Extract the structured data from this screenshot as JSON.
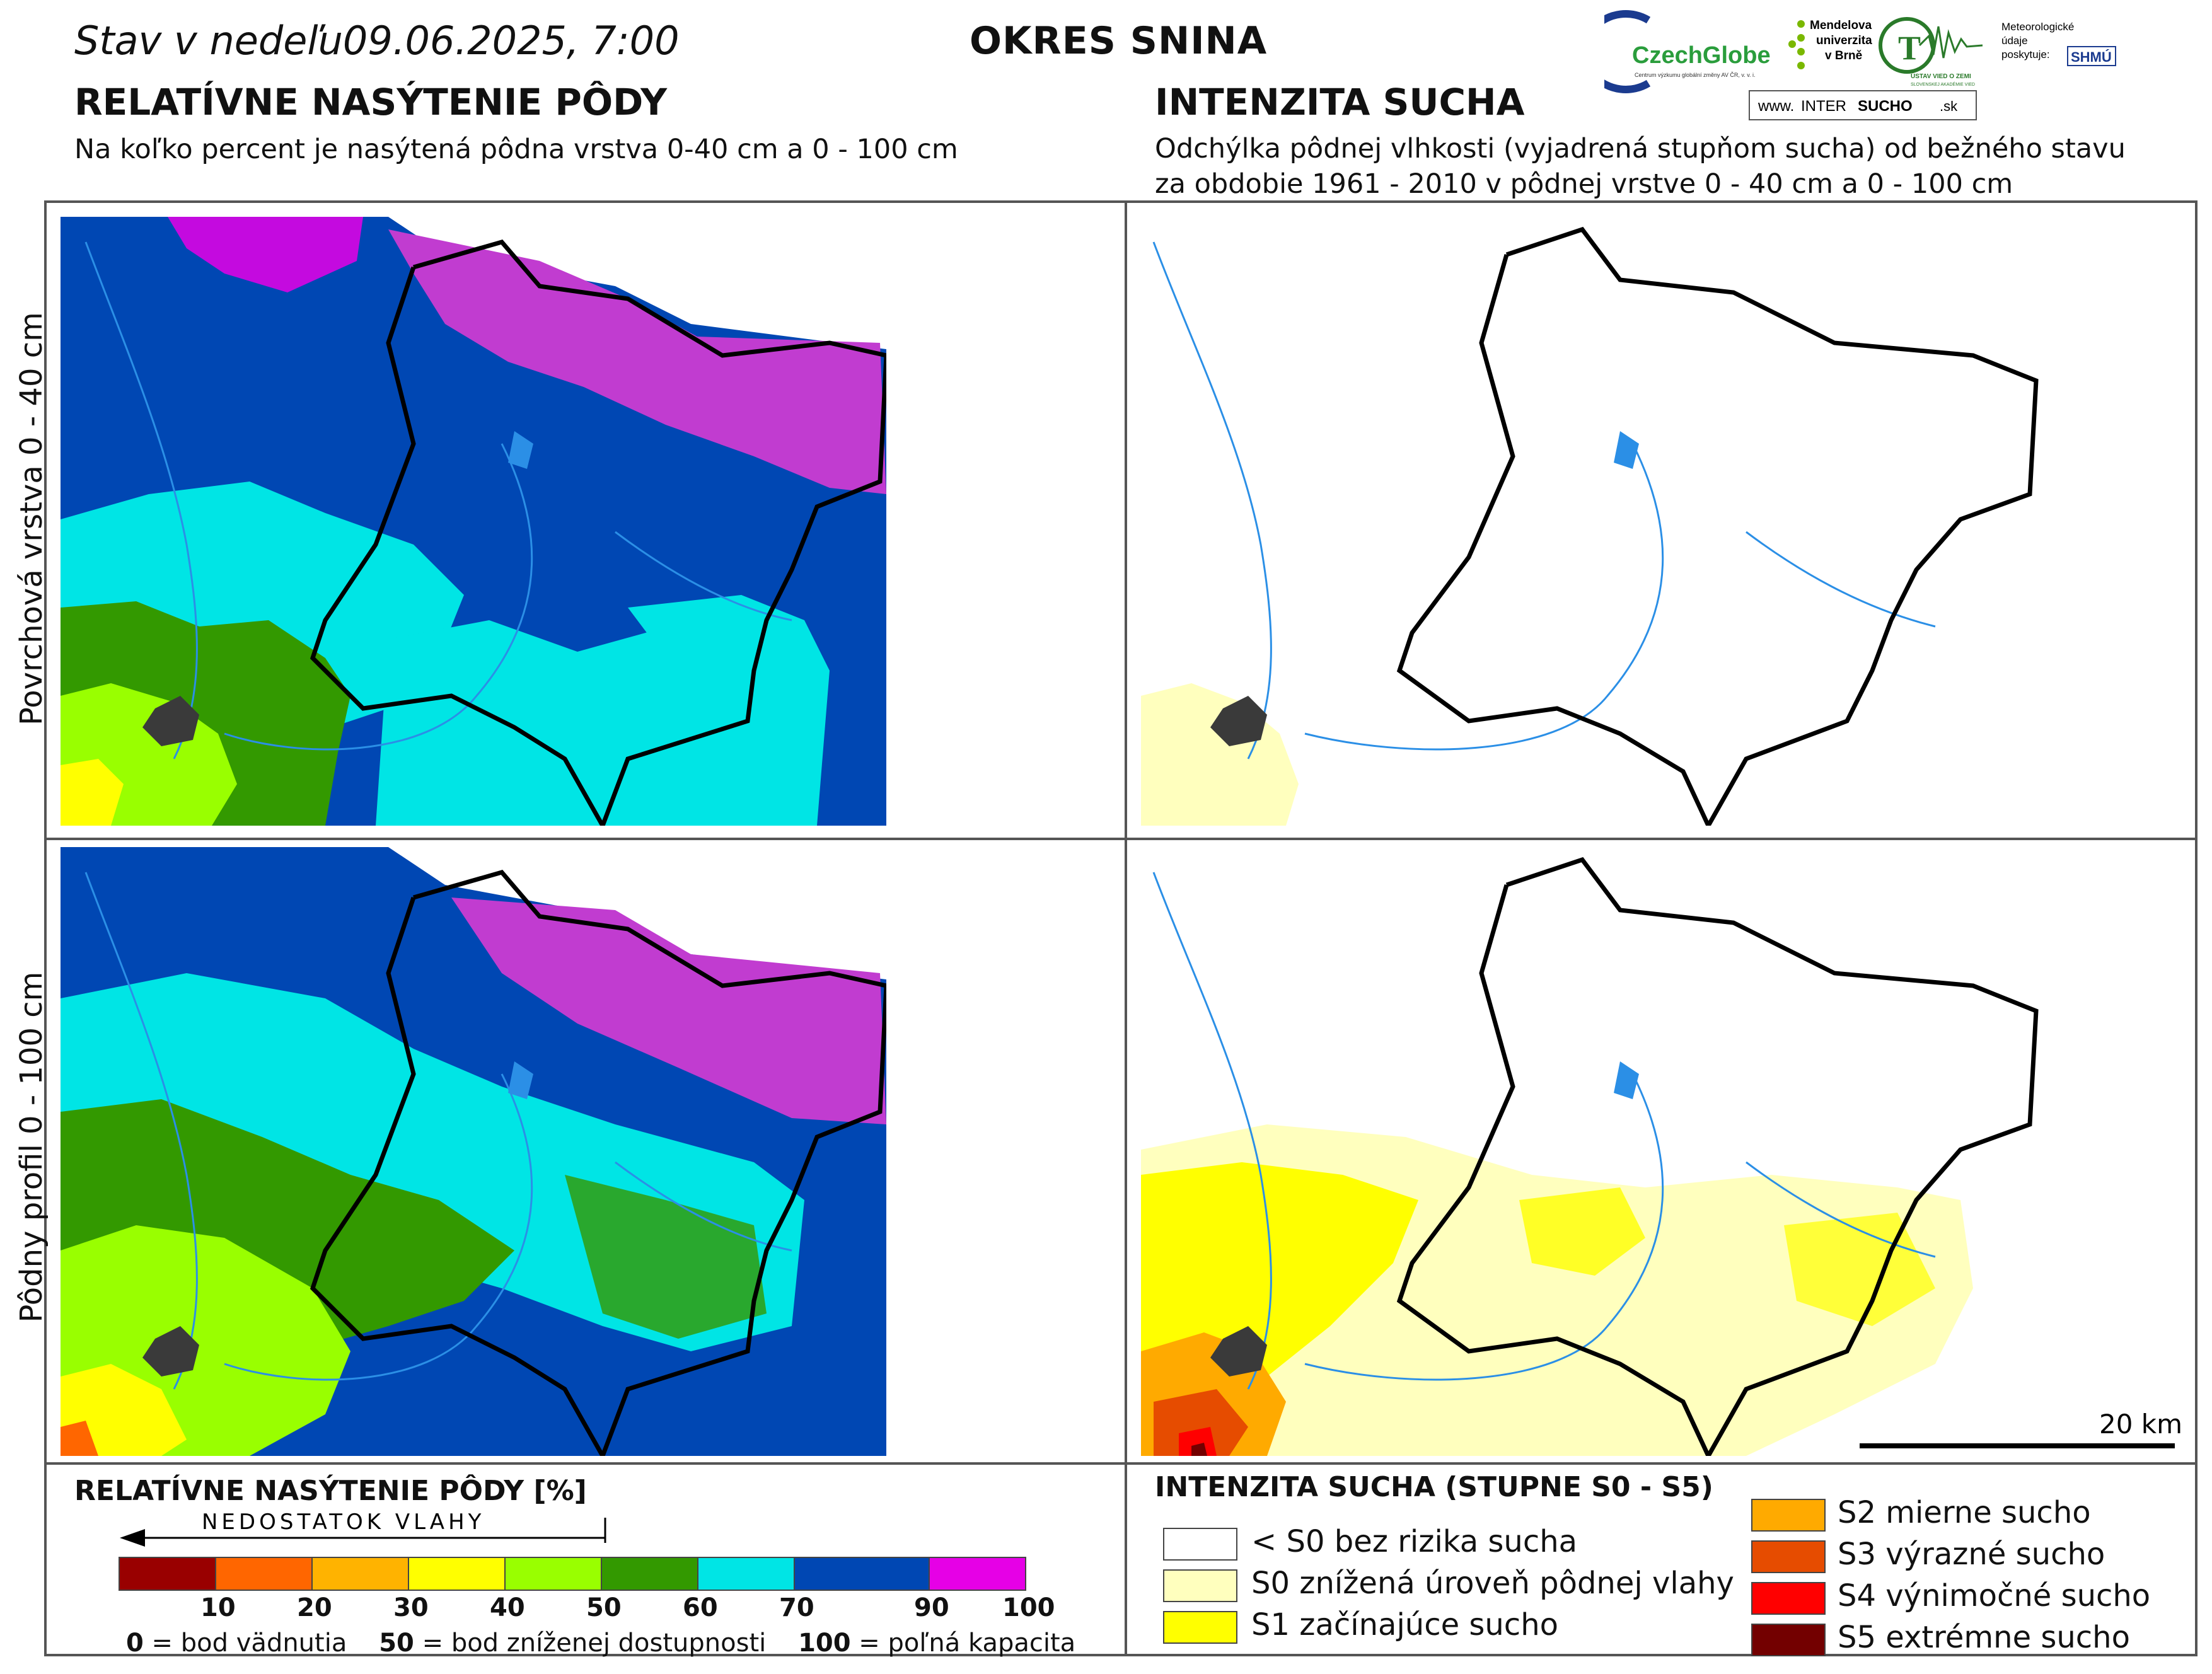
{
  "header": {
    "date_prefix": "Stav v nedeľu",
    "date_value": "09.06.2025, 7:00",
    "district": "OKRES  SNINA"
  },
  "left_panel": {
    "title": "RELATÍVNE NASÝTENIE PÔDY",
    "subtitle": "Na koľko percent je nasýtená pôdna vrstva 0-40 cm a 0 - 100 cm"
  },
  "right_panel": {
    "title": "INTENZITA SUCHA",
    "subtitle_line1": "Odchýlka pôdnej vlhkosti (vyjadrená stupňom sucha) od bežného stavu",
    "subtitle_line2": "za obdobie 1961 - 2010 v pôdnej vrstve 0 - 40 cm a 0 - 100 cm"
  },
  "logos": {
    "czechglobe": "CzechGlobe",
    "czechglobe_sub": "Centrum výzkumu globální změny AV ČR, v. v. i.",
    "mendel_1": "Mendelova",
    "mendel_2": "univerzita",
    "mendel_3": "v Brně",
    "uvz": "ÚSTAV VIED O ZEMI",
    "uvz_sub": "SLOVENSKEJ AKADÉMIE VIED",
    "meteo_1": "Meteorologické",
    "meteo_2": "údaje",
    "meteo_3": "poskytuje:",
    "shmu": "SHMÚ",
    "web_prefix": "www.",
    "web_a": "INTER",
    "web_b": "SUCHO",
    "web_c": ".sk"
  },
  "row_labels": {
    "top": "Povrchová vrstva 0 - 40 cm",
    "bottom": "Pôdny profil 0 - 100 cm"
  },
  "scale_bar": {
    "label": "20 km"
  },
  "legend_saturation": {
    "title": "RELATÍVNE NASÝTENIE PÔDY [%]",
    "arrow_label": "NEDOSTATOK VLAHY",
    "ticks": [
      "10",
      "20",
      "30",
      "40",
      "50",
      "60",
      "70",
      "90",
      "100"
    ],
    "colors": [
      "#990000",
      "#ff6600",
      "#ffb300",
      "#ffff00",
      "#99ff00",
      "#339900",
      "#00e5e5",
      "#0047b3",
      "#e600e6"
    ],
    "foot_0_num": "0",
    "foot_0_text": " = bod vädnutia",
    "foot_50_num": "50",
    "foot_50_text": " = bod zníženej dostupnosti",
    "foot_100_num": "100",
    "foot_100_text": " = poľná kapacita"
  },
  "legend_drought": {
    "title": "INTENZITA SUCHA (STUPNE S0 - S5)",
    "items": [
      {
        "label": "< S0 bez rizika sucha",
        "color": "#ffffff"
      },
      {
        "label": "S0 znížená úroveň pôdnej vlahy",
        "color": "#ffffbe"
      },
      {
        "label": "S1 začínajúce sucho",
        "color": "#ffff00"
      },
      {
        "label": "S2 mierne sucho",
        "color": "#ffaa00"
      },
      {
        "label": "S3 výrazné sucho",
        "color": "#e64c00"
      },
      {
        "label": "S4 výnimočné sucho",
        "color": "#ff0000"
      },
      {
        "label": "S5 extrémne sucho",
        "color": "#730000"
      }
    ]
  }
}
